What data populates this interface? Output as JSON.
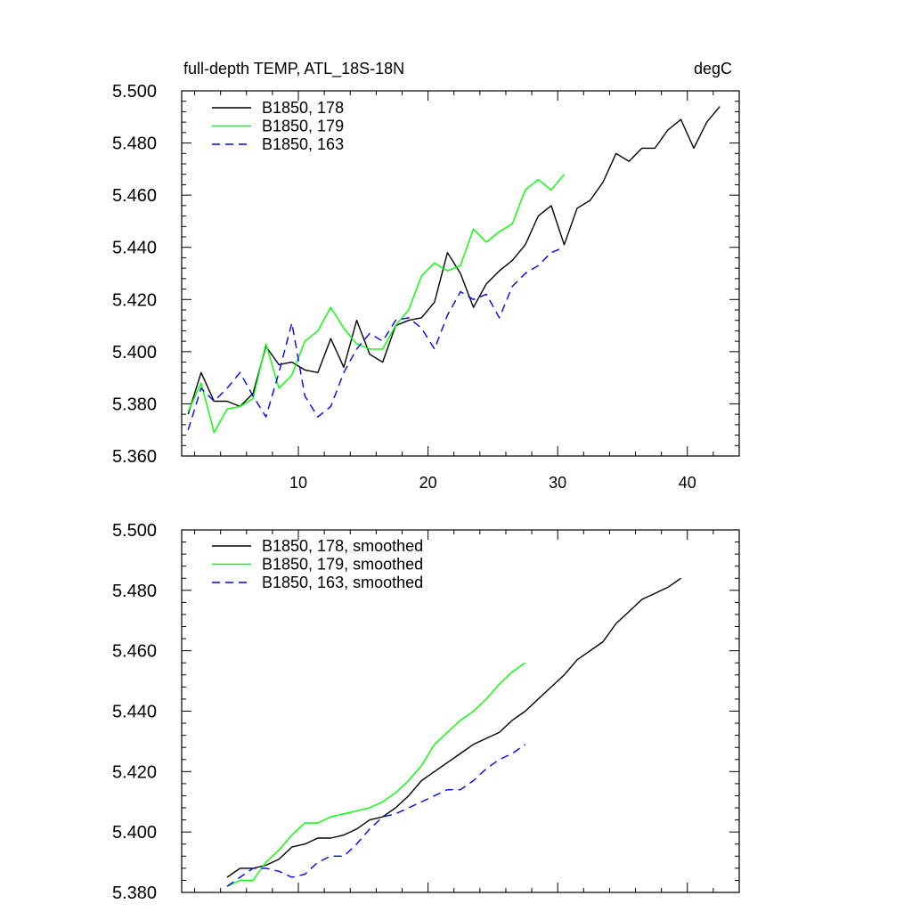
{
  "chart_data": [
    {
      "type": "line",
      "title_left": "full-depth TEMP, ATL_18S-18N",
      "title_right": "degC",
      "xlim": [
        1,
        44
      ],
      "ylim": [
        5.36,
        5.5
      ],
      "xticks": [
        10,
        20,
        30,
        40
      ],
      "yticks": [
        5.36,
        5.38,
        5.4,
        5.42,
        5.44,
        5.46,
        5.48,
        5.5
      ],
      "ytick_labels": [
        "5.360",
        "5.380",
        "5.400",
        "5.420",
        "5.440",
        "5.460",
        "5.480",
        "5.500"
      ],
      "legend_position": "top-left",
      "series": [
        {
          "name": "B1850, 178",
          "color": "#000000",
          "dash": "solid",
          "x": [
            1.5,
            2.5,
            3.5,
            4.5,
            5.5,
            6.5,
            7.5,
            8.5,
            9.5,
            10.5,
            11.5,
            12.5,
            13.5,
            14.5,
            15.5,
            16.5,
            17.5,
            18.5,
            19.5,
            20.5,
            21.5,
            22.5,
            23.5,
            24.5,
            25.5,
            26.5,
            27.5,
            28.5,
            29.5,
            30.5,
            31.5,
            32.5,
            33.5,
            34.5,
            35.5,
            36.5,
            37.5,
            38.5,
            39.5,
            40.5,
            41.5,
            42.5
          ],
          "values": [
            5.376,
            5.392,
            5.381,
            5.381,
            5.379,
            5.384,
            5.402,
            5.395,
            5.396,
            5.393,
            5.392,
            5.405,
            5.394,
            5.412,
            5.399,
            5.396,
            5.41,
            5.412,
            5.413,
            5.419,
            5.438,
            5.43,
            5.417,
            5.426,
            5.431,
            5.435,
            5.441,
            5.452,
            5.456,
            5.441,
            5.455,
            5.458,
            5.465,
            5.476,
            5.473,
            5.478,
            5.478,
            5.485,
            5.489,
            5.478,
            5.488,
            5.494
          ]
        },
        {
          "name": "B1850, 179",
          "color": "#00ff00",
          "dash": "solid",
          "x": [
            1.5,
            2.5,
            3.5,
            4.5,
            5.5,
            6.5,
            7.5,
            8.5,
            9.5,
            10.5,
            11.5,
            12.5,
            13.5,
            14.5,
            15.5,
            16.5,
            17.5,
            18.5,
            19.5,
            20.5,
            21.5,
            22.5,
            23.5,
            24.5,
            25.5,
            26.5,
            27.5,
            28.5,
            29.5,
            30.5
          ],
          "values": [
            5.377,
            5.388,
            5.369,
            5.378,
            5.379,
            5.382,
            5.403,
            5.386,
            5.391,
            5.404,
            5.408,
            5.417,
            5.409,
            5.403,
            5.401,
            5.401,
            5.41,
            5.416,
            5.429,
            5.434,
            5.431,
            5.433,
            5.447,
            5.442,
            5.446,
            5.449,
            5.462,
            5.466,
            5.462,
            5.468
          ]
        },
        {
          "name": "B1850, 163",
          "color": "#0000ff",
          "dash": "dashed",
          "x": [
            1.5,
            2.5,
            3.5,
            4.5,
            5.5,
            6.5,
            7.5,
            8.5,
            9.5,
            10.5,
            11.5,
            12.5,
            13.5,
            14.5,
            15.5,
            16.5,
            17.5,
            18.5,
            19.5,
            20.5,
            21.5,
            22.5,
            23.5,
            24.5,
            25.5,
            26.5,
            27.5,
            28.5,
            29.5,
            30.5
          ],
          "values": [
            5.37,
            5.386,
            5.381,
            5.386,
            5.392,
            5.383,
            5.375,
            5.392,
            5.411,
            5.383,
            5.375,
            5.379,
            5.392,
            5.401,
            5.407,
            5.404,
            5.412,
            5.413,
            5.409,
            5.401,
            5.414,
            5.423,
            5.42,
            5.422,
            5.413,
            5.425,
            5.43,
            5.433,
            5.438,
            5.44
          ]
        }
      ]
    },
    {
      "type": "line",
      "xlim": [
        1,
        44
      ],
      "ylim": [
        5.38,
        5.5
      ],
      "xticks": [
        10,
        20,
        30,
        40
      ],
      "yticks": [
        5.38,
        5.4,
        5.42,
        5.44,
        5.46,
        5.48,
        5.5
      ],
      "ytick_labels": [
        "5.380",
        "5.400",
        "5.420",
        "5.440",
        "5.460",
        "5.480",
        "5.500"
      ],
      "legend_position": "top-left",
      "series": [
        {
          "name": "B1850, 178, smoothed",
          "color": "#000000",
          "dash": "solid",
          "x": [
            4.5,
            5.5,
            6.5,
            7.5,
            8.5,
            9.5,
            10.5,
            11.5,
            12.5,
            13.5,
            14.5,
            15.5,
            16.5,
            17.5,
            18.5,
            19.5,
            20.5,
            21.5,
            22.5,
            23.5,
            24.5,
            25.5,
            26.5,
            27.5,
            28.5,
            29.5,
            30.5,
            31.5,
            32.5,
            33.5,
            34.5,
            35.5,
            36.5,
            37.5,
            38.5,
            39.5
          ],
          "values": [
            5.385,
            5.388,
            5.388,
            5.389,
            5.391,
            5.395,
            5.396,
            5.398,
            5.398,
            5.399,
            5.401,
            5.404,
            5.405,
            5.408,
            5.412,
            5.417,
            5.42,
            5.423,
            5.426,
            5.429,
            5.431,
            5.433,
            5.437,
            5.44,
            5.444,
            5.448,
            5.452,
            5.457,
            5.46,
            5.463,
            5.469,
            5.473,
            5.477,
            5.479,
            5.481,
            5.484
          ]
        },
        {
          "name": "B1850, 179, smoothed",
          "color": "#00ff00",
          "dash": "solid",
          "x": [
            4.5,
            5.5,
            6.5,
            7.5,
            8.5,
            9.5,
            10.5,
            11.5,
            12.5,
            13.5,
            14.5,
            15.5,
            16.5,
            17.5,
            18.5,
            19.5,
            20.5,
            21.5,
            22.5,
            23.5,
            24.5,
            25.5,
            26.5,
            27.5
          ],
          "values": [
            5.382,
            5.384,
            5.384,
            5.39,
            5.394,
            5.399,
            5.403,
            5.403,
            5.405,
            5.406,
            5.407,
            5.408,
            5.41,
            5.413,
            5.417,
            5.422,
            5.429,
            5.433,
            5.437,
            5.44,
            5.444,
            5.449,
            5.453,
            5.456
          ]
        },
        {
          "name": "B1850, 163, smoothed",
          "color": "#0000ff",
          "dash": "dashed",
          "x": [
            4.5,
            5.5,
            6.5,
            7.5,
            8.5,
            9.5,
            10.5,
            11.5,
            12.5,
            13.5,
            14.5,
            15.5,
            16.5,
            17.5,
            18.5,
            19.5,
            20.5,
            21.5,
            22.5,
            23.5,
            24.5,
            25.5,
            26.5,
            27.5
          ],
          "values": [
            5.382,
            5.385,
            5.388,
            5.388,
            5.387,
            5.385,
            5.386,
            5.39,
            5.392,
            5.392,
            5.396,
            5.401,
            5.405,
            5.406,
            5.408,
            5.41,
            5.412,
            5.414,
            5.414,
            5.417,
            5.421,
            5.424,
            5.426,
            5.429
          ]
        }
      ]
    }
  ]
}
